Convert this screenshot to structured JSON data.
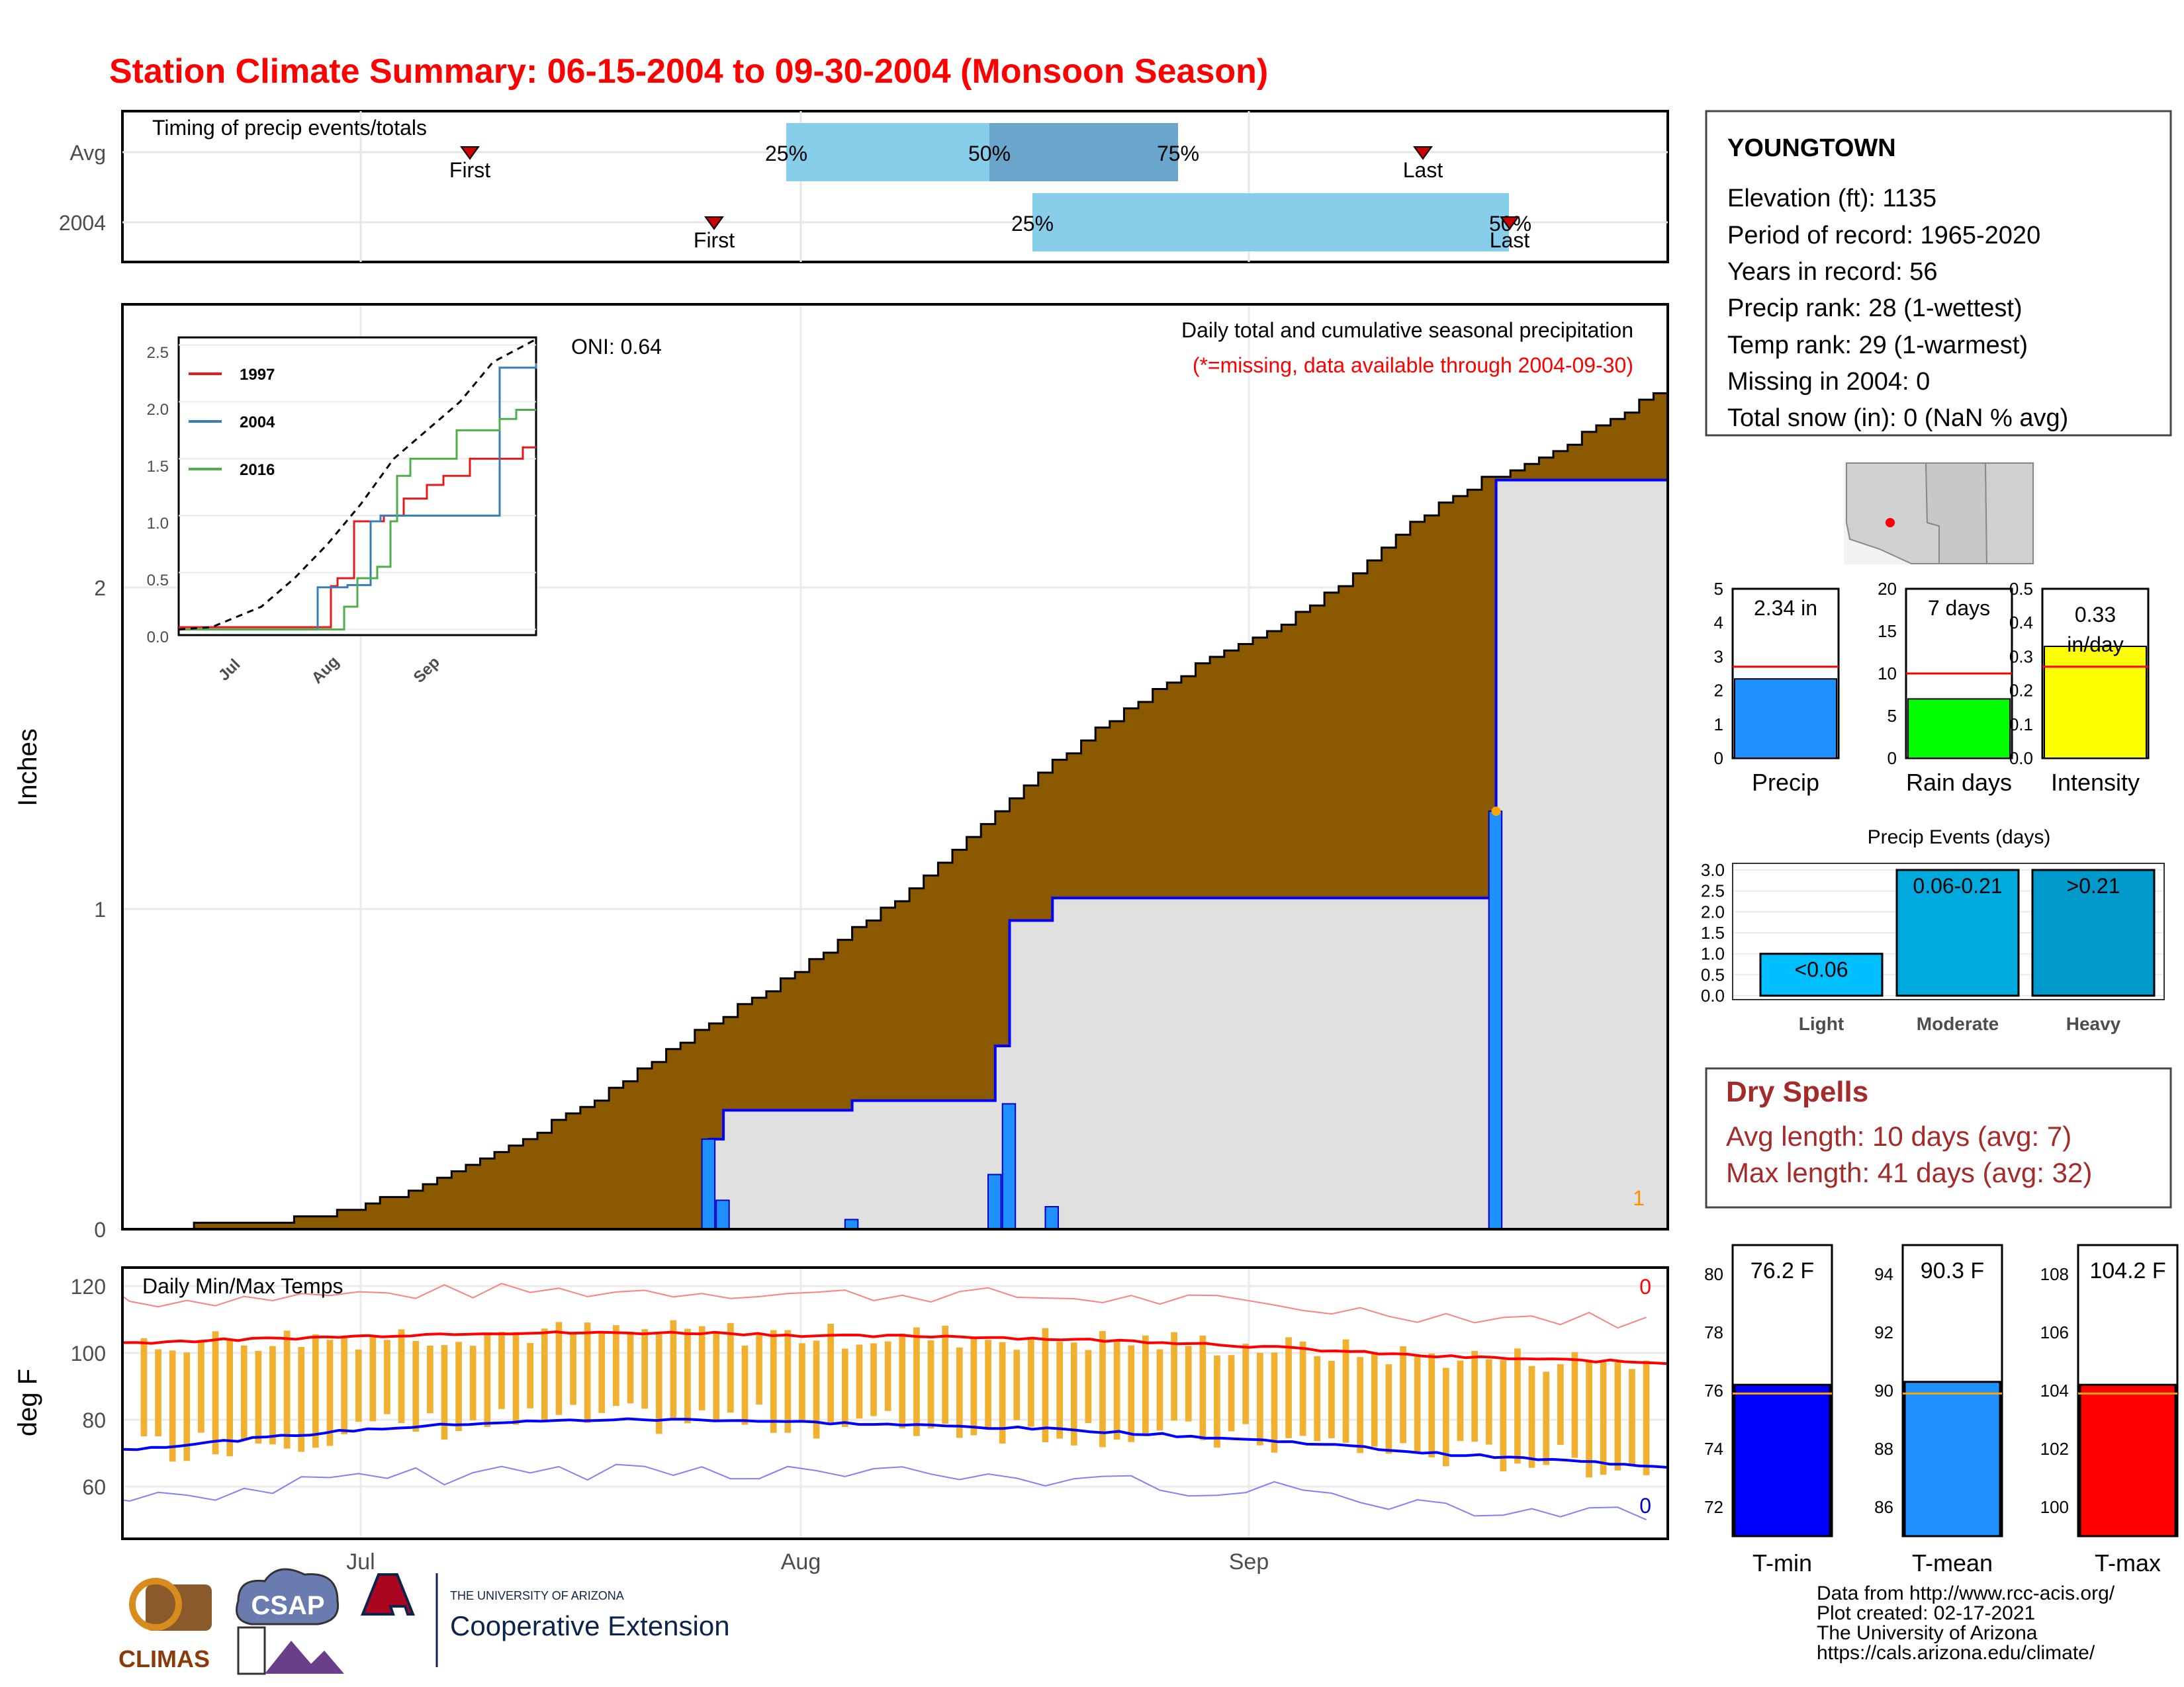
{
  "title": "Station Climate Summary: 06-15-2004 to 09-30-2004 (Monsoon Season)",
  "colors": {
    "title": "#ff0000",
    "cumulative_fill": "#8b5a00",
    "obs_fill": "#e0e0e0",
    "obs_line": "#0000ff",
    "daily_bar": "#1e90ff",
    "temp_bar": "#f0b030",
    "tmax_line": "#ff0000",
    "tmin_line": "#0000ff",
    "panel_blue": "#87ceeb",
    "panel_blue_dark": "#6aa6cc",
    "marker": "#cc0000",
    "dry_spell": "#a52a2a"
  },
  "timing": {
    "title": "Timing of precip events/totals",
    "rows": [
      "Avg",
      "2004"
    ],
    "avg": {
      "first": "First",
      "last": "Last",
      "p25": "25%",
      "p50": "50%",
      "p75": "75%"
    },
    "y2004": {
      "first": "First",
      "last": "Last",
      "p25": "25%",
      "p50_75": "50%"
    }
  },
  "station": {
    "name": "YOUNGTOWN",
    "lines": [
      "Elevation (ft): 1135",
      "Period of record: 1965-2020",
      "Years in record: 56",
      "Precip rank: 28 (1-wettest)",
      "Temp rank: 29 (1-warmest)",
      "Missing in 2004: 0",
      "Total snow (in): 0 (NaN % avg)"
    ]
  },
  "precip_panel": {
    "title": "Daily total and cumulative seasonal precipitation",
    "subtitle": "(*=missing, data available through 2004-09-30)",
    "oni": "ONI: 0.64",
    "ylabel": "Inches",
    "y_ticks": [
      "0",
      "1",
      "2"
    ],
    "x_ticks": [
      "Jul",
      "Aug",
      "Sep"
    ],
    "corner_label": "1"
  },
  "inset": {
    "legend": [
      "1997",
      "2004",
      "2016"
    ],
    "y_ticks": [
      "0.0",
      "0.5",
      "1.0",
      "1.5",
      "2.0",
      "2.5"
    ],
    "x_ticks": [
      "Jul",
      "Aug",
      "Sep"
    ]
  },
  "temp_panel": {
    "title": "Daily Min/Max Temps",
    "ylabel": "deg F",
    "y_ticks": [
      "60",
      "80",
      "100",
      "120"
    ],
    "top_label": "0",
    "bottom_label": "0"
  },
  "mini_bars": [
    {
      "label": "Precip",
      "value_text": "2.34 in",
      "ticks": [
        "0",
        "1",
        "2",
        "3",
        "4",
        "5"
      ],
      "color": "#1e90ff"
    },
    {
      "label": "Rain days",
      "value_text": "7 days",
      "ticks": [
        "0",
        "5",
        "10",
        "15",
        "20"
      ],
      "color": "#00ff00"
    },
    {
      "label": "Intensity",
      "value_text": "0.33 in/day",
      "ticks": [
        "0.0",
        "0.1",
        "0.2",
        "0.3",
        "0.4",
        "0.5"
      ],
      "color": "#ffff00"
    }
  ],
  "events": {
    "title": "Precip Events (days)",
    "ticks": [
      "0.0",
      "0.5",
      "1.0",
      "1.5",
      "2.0",
      "2.5",
      "3.0"
    ],
    "categories": [
      "Light",
      "Moderate",
      "Heavy"
    ],
    "bar_labels": [
      "<0.06",
      "0.06-0.21",
      ">0.21"
    ]
  },
  "dry_spells": {
    "title": "Dry Spells",
    "avg": "Avg length: 10 days (avg: 7)",
    "max": "Max length: 41 days (avg: 32)"
  },
  "temp_bars": [
    {
      "label": "T-min",
      "value_text": "76.2 F",
      "ticks": [
        "72",
        "74",
        "76",
        "78",
        "80"
      ],
      "color": "#0000ff"
    },
    {
      "label": "T-mean",
      "value_text": "90.3 F",
      "ticks": [
        "86",
        "88",
        "90",
        "92",
        "94"
      ],
      "color": "#1e90ff"
    },
    {
      "label": "T-max",
      "value_text": "104.2 F",
      "ticks": [
        "100",
        "102",
        "104",
        "106",
        "108"
      ],
      "color": "#ff0000"
    }
  ],
  "footer": {
    "lines": [
      "Data from http://www.rcc-acis.org/",
      "Plot created: 02-17-2021",
      "The University of Arizona",
      "https://cals.arizona.edu/climate/"
    ],
    "logo_climas": "CLIMAS",
    "logo_csap": "CSAP",
    "ua_small": "THE UNIVERSITY OF ARIZONA",
    "ua_big": "Cooperative Extension"
  },
  "chart_data": [
    {
      "type": "area",
      "title": "Daily total and cumulative seasonal precipitation",
      "ylabel": "Inches",
      "x_range": [
        "2004-06-15",
        "2004-09-30"
      ],
      "ylim": [
        0,
        2.6
      ],
      "series": [
        {
          "name": "2004",
          "daily_events": [
            {
              "date": "2004-07-26",
              "value": 0.28
            },
            {
              "date": "2004-07-27",
              "value": 0.09
            },
            {
              "date": "2004-08-05",
              "value": 0.03
            },
            {
              "date": "2004-08-15",
              "value": 0.17
            },
            {
              "date": "2004-08-16",
              "value": 0.39
            },
            {
              "date": "2004-08-19",
              "value": 0.07
            },
            {
              "date": "2004-09-19",
              "value": 1.3
            }
          ]
        }
      ],
      "avg_cumulative": [
        [
          0,
          0.0
        ],
        [
          10,
          0.02
        ],
        [
          15,
          0.05
        ],
        [
          20,
          0.12
        ],
        [
          25,
          0.22
        ],
        [
          30,
          0.33
        ],
        [
          35,
          0.46
        ],
        [
          40,
          0.62
        ],
        [
          45,
          0.74
        ],
        [
          50,
          0.9
        ],
        [
          55,
          1.05
        ],
        [
          60,
          1.25
        ],
        [
          65,
          1.45
        ],
        [
          70,
          1.62
        ],
        [
          75,
          1.75
        ],
        [
          80,
          1.85
        ],
        [
          85,
          2.0
        ],
        [
          90,
          2.2
        ],
        [
          95,
          2.33
        ],
        [
          100,
          2.42
        ],
        [
          105,
          2.55
        ],
        [
          107,
          2.6
        ]
      ],
      "avg_cumulative_x": "days since 2004-06-15"
    },
    {
      "type": "line",
      "title": "Daily Min/Max Temps",
      "ylabel": "deg F",
      "ylim": [
        50,
        125
      ],
      "series": [
        {
          "name": "avg max",
          "values": [
            103,
            104,
            105,
            106,
            106,
            106,
            105,
            105,
            104,
            103,
            101,
            99,
            98,
            97
          ]
        },
        {
          "name": "avg min",
          "values": [
            71,
            74,
            77,
            79,
            80,
            80,
            79,
            78,
            77,
            75,
            73,
            70,
            68,
            66
          ]
        }
      ]
    },
    {
      "type": "bar",
      "categories": [
        "Light",
        "Moderate",
        "Heavy"
      ],
      "values": [
        1,
        3,
        3
      ],
      "ylim": [
        0,
        3
      ]
    },
    {
      "type": "bar",
      "categories": [
        "Precip",
        "Rain days",
        "Intensity"
      ],
      "values": [
        2.34,
        7,
        0.33
      ],
      "averages": [
        2.7,
        10,
        0.27
      ]
    },
    {
      "type": "bar",
      "categories": [
        "T-min",
        "T-mean",
        "T-max"
      ],
      "values": [
        76.2,
        90.3,
        104.2
      ],
      "averages": [
        75.9,
        89.9,
        103.9
      ]
    }
  ]
}
